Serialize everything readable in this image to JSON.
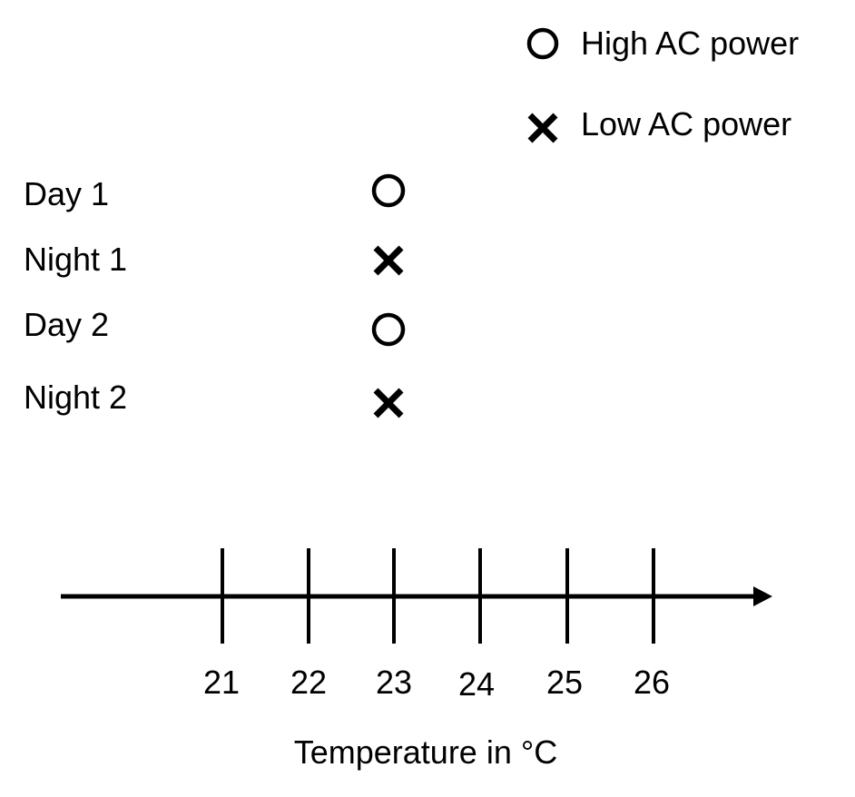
{
  "legend": [
    {
      "symbol": "circle",
      "label": "High AC power"
    },
    {
      "symbol": "cross",
      "label": "Low AC power"
    }
  ],
  "rows": [
    {
      "label": "Day 1",
      "temperature": 23,
      "symbol": "circle"
    },
    {
      "label": "Night 1",
      "temperature": 23,
      "symbol": "cross"
    },
    {
      "label": "Day 2",
      "temperature": 23,
      "symbol": "circle"
    },
    {
      "label": "Night 2",
      "temperature": 23,
      "symbol": "cross"
    }
  ],
  "axis": {
    "ticks": [
      "21",
      "22",
      "23",
      "24",
      "25",
      "26"
    ],
    "title": "Temperature in °C"
  }
}
